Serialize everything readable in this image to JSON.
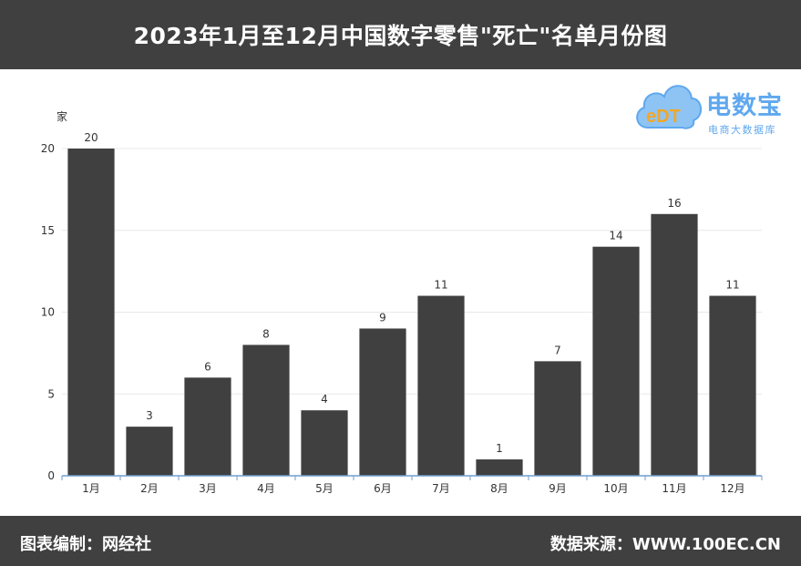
{
  "header": {
    "title": "2023年1月至12月中国数字零售\"死亡\"名单月份图"
  },
  "logo": {
    "main": "电数宝",
    "sub": "电商大数据库",
    "mark": "eDT"
  },
  "footer": {
    "left": "图表编制：网经社",
    "right": "数据来源：WWW.100EC.CN"
  },
  "colors": {
    "bar": "#404040",
    "header": "#404040",
    "axis": "#6e9ecf",
    "grid": "#e9e9e9",
    "brand": "#5fa8ee"
  },
  "chart_data": {
    "type": "bar",
    "title": "2023年1月至12月中国数字零售\"死亡\"名单月份图",
    "ylabel": "家",
    "xlabel": "",
    "categories": [
      "1月",
      "2月",
      "3月",
      "4月",
      "5月",
      "6月",
      "7月",
      "8月",
      "9月",
      "10月",
      "11月",
      "12月"
    ],
    "values": [
      20,
      3,
      6,
      8,
      4,
      9,
      11,
      1,
      7,
      14,
      16,
      11
    ],
    "ylim": [
      0,
      20
    ],
    "yticks": [
      0,
      5,
      10,
      15,
      20
    ],
    "grid": true,
    "data_labels": true
  }
}
